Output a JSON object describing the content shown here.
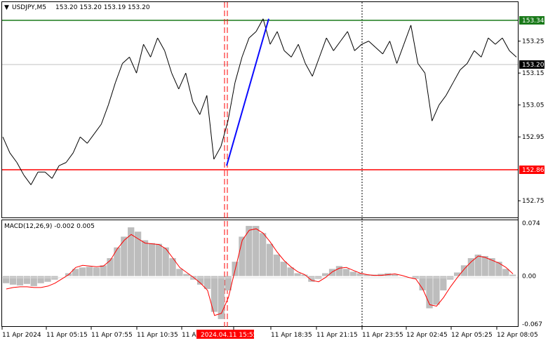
{
  "header": {
    "symbol_label": "USDJPY,M5",
    "ohlc_label": "153.20 153.20 153.19 153.20"
  },
  "price_axis": {
    "ticks": [
      "153.25",
      "153.15",
      "153.05",
      "152.95",
      "152.75"
    ],
    "tick_values": [
      153.25,
      153.15,
      153.05,
      152.95,
      152.75
    ]
  },
  "levels": {
    "resistance": {
      "value": 153.34,
      "label": "153.34",
      "color": "#1a7a1a"
    },
    "current": {
      "value": 153.2,
      "label": "153.20",
      "color": "#000000"
    },
    "support": {
      "value": 152.86,
      "label": "152.86",
      "color": "#ff0000"
    }
  },
  "macd": {
    "label": "MACD(12,26,9) -0.002 0.005",
    "axis_ticks": [
      "0.074",
      "0.00",
      "-0.067"
    ],
    "axis_values": [
      0.074,
      0.0,
      -0.067
    ],
    "histogram_color": "#bdbdbd",
    "signal_color": "#ff0000"
  },
  "time_axis": {
    "labels": [
      "11 Apr 2024",
      "11 Apr 05:15",
      "11 Apr 07:55",
      "11 Apr 10:35",
      "11 A",
      "15:55",
      "11 Apr 18:35",
      "11 Apr 21:15",
      "11 Apr 23:55",
      "12 Apr 02:45",
      "12 Apr 05:25",
      "12 Apr 08:05"
    ],
    "highlight_label": "2024.04.11 15:55",
    "highlight_color": "#ff0000"
  },
  "chart_data": {
    "type": "line",
    "title": "USDJPY,M5",
    "ylim": [
      152.7,
      153.37
    ],
    "y_ticks": [
      153.25,
      153.15,
      153.05,
      152.95,
      152.75
    ],
    "x_labels": [
      "11 Apr 2024",
      "11 Apr 05:15",
      "11 Apr 07:55",
      "11 Apr 10:35",
      "11 A",
      "2024.04.11 15:55",
      "11 Apr 18:35",
      "11 Apr 21:15",
      "11 Apr 23:55",
      "12 Apr 02:45",
      "12 Apr 05:25",
      "12 Apr 08:05"
    ],
    "series": [
      {
        "values": [
          152.95,
          152.9,
          152.87,
          152.83,
          152.8,
          152.84,
          152.84,
          152.82,
          152.86,
          152.87,
          152.9,
          152.95,
          152.93,
          152.96,
          152.99,
          153.05,
          153.12,
          153.18,
          153.2,
          153.15,
          153.24,
          153.2,
          153.26,
          153.22,
          153.15,
          153.1,
          153.15,
          153.06,
          153.02,
          153.08,
          152.88,
          152.92,
          153.0,
          153.12,
          153.2,
          153.26,
          153.28,
          153.32,
          153.24,
          153.28,
          153.22,
          153.2,
          153.24,
          153.18,
          153.14,
          153.2,
          153.26,
          153.22,
          153.25,
          153.28,
          153.22,
          153.24,
          153.25,
          153.23,
          153.21,
          153.25,
          153.18,
          153.24,
          153.3,
          153.18,
          153.15,
          153.0,
          153.05,
          153.08,
          153.12,
          153.16,
          153.18,
          153.22,
          153.2,
          153.26,
          153.24,
          153.26,
          153.22,
          153.2
        ],
        "color": "#000000"
      }
    ],
    "trend_line": {
      "from": 152.86,
      "to": 153.32,
      "color": "#0a0aff"
    },
    "resistance_level": 153.34,
    "support_level": 152.86,
    "macd": {
      "ylim": [
        -0.067,
        0.074
      ],
      "histogram": [
        -0.01,
        -0.012,
        -0.013,
        -0.011,
        -0.014,
        -0.01,
        -0.008,
        -0.005,
        0.0,
        0.004,
        0.01,
        0.012,
        0.013,
        0.012,
        0.015,
        0.025,
        0.04,
        0.055,
        0.068,
        0.062,
        0.05,
        0.046,
        0.045,
        0.04,
        0.025,
        0.01,
        0.003,
        -0.005,
        -0.012,
        -0.018,
        -0.05,
        -0.06,
        -0.02,
        0.02,
        0.055,
        0.07,
        0.07,
        0.06,
        0.045,
        0.03,
        0.02,
        0.012,
        0.004,
        0.002,
        -0.008,
        -0.004,
        0.004,
        0.01,
        0.014,
        0.01,
        0.006,
        0.004,
        0.002,
        0.002,
        0.003,
        0.004,
        0.002,
        0.0,
        0.0,
        -0.004,
        -0.02,
        -0.045,
        -0.04,
        -0.02,
        -0.005,
        0.005,
        0.015,
        0.025,
        0.03,
        0.028,
        0.025,
        0.02,
        0.01,
        0.002
      ],
      "signal": [
        -0.018,
        -0.016,
        -0.015,
        -0.015,
        -0.016,
        -0.016,
        -0.014,
        -0.01,
        -0.004,
        0.002,
        0.012,
        0.015,
        0.014,
        0.013,
        0.014,
        0.022,
        0.038,
        0.05,
        0.058,
        0.052,
        0.046,
        0.045,
        0.044,
        0.038,
        0.025,
        0.012,
        0.005,
        -0.002,
        -0.01,
        -0.02,
        -0.055,
        -0.052,
        -0.03,
        0.01,
        0.05,
        0.064,
        0.066,
        0.06,
        0.048,
        0.034,
        0.022,
        0.013,
        0.006,
        0.002,
        -0.006,
        -0.008,
        -0.002,
        0.006,
        0.011,
        0.012,
        0.008,
        0.004,
        0.002,
        0.001,
        0.001,
        0.002,
        0.003,
        0.001,
        -0.002,
        -0.004,
        -0.018,
        -0.04,
        -0.042,
        -0.03,
        -0.015,
        -0.002,
        0.01,
        0.02,
        0.028,
        0.026,
        0.022,
        0.018,
        0.012,
        0.003
      ]
    }
  }
}
